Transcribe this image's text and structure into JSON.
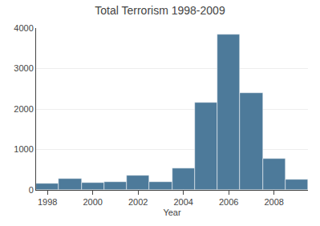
{
  "chart_data": {
    "type": "bar",
    "title": "Total Terrorism 1998-2009",
    "xlabel": "Year",
    "x": [
      1998,
      1999,
      2000,
      2001,
      2002,
      2003,
      2004,
      2005,
      2006,
      2007,
      2008,
      2009
    ],
    "values": [
      150,
      270,
      170,
      200,
      360,
      200,
      530,
      2150,
      3850,
      2400,
      780,
      255
    ],
    "color": "#4d7a9a",
    "xlim": [
      1997.5,
      2009.5
    ],
    "xticks": [
      1998,
      2000,
      2002,
      2004,
      2006,
      2008
    ],
    "ylim": [
      0,
      4000
    ],
    "yticks": [
      0,
      1000,
      2000,
      3000,
      4000
    ],
    "grid": true
  }
}
